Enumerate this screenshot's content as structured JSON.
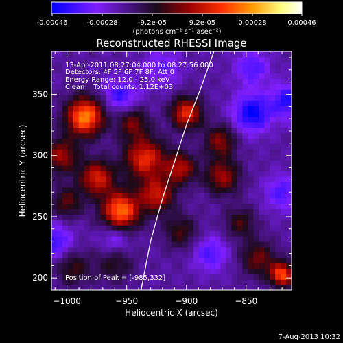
{
  "colorbar": {
    "ticks": [
      "-0.00046",
      "-0.00028",
      "-9.2e-05",
      "9.2e-05",
      "0.00028",
      "0.00046"
    ],
    "units": "(photons cm⁻² s⁻¹ asec⁻²)"
  },
  "chart_data": {
    "type": "heatmap",
    "title": "Reconstructed RHESSI Image",
    "xlabel": "Heliocentric X (arcsec)",
    "ylabel": "Heliocentric Y (arcsec)",
    "xlim": [
      -1013,
      -812
    ],
    "ylim": [
      190,
      385
    ],
    "xticks": [
      -1000,
      -950,
      -900,
      -850
    ],
    "yticks": [
      200,
      250,
      300,
      350
    ],
    "xtick_labels": [
      "−1000",
      "−950",
      "−900",
      "−850"
    ],
    "ytick_labels": [
      "200",
      "250",
      "300",
      "350"
    ],
    "colorbar_range": [
      -0.00046,
      0.00046
    ],
    "colormap": [
      "#0000ff",
      "#7f1fff",
      "#1a0a1a",
      "#9a0000",
      "#ff3000",
      "#ff9a00",
      "#ffff80",
      "#ffffff"
    ],
    "grid": false,
    "annotations": {
      "time_range": "13-Apr-2011 08:27:04.000 to 08:27:56.000",
      "detectors": "Detectors: 4F 5F 6F 7F 8F, Att 0",
      "energy": "Energy Range: 12.0 - 25.0 keV",
      "clean": "Clean    Total counts: 1.12E+03",
      "peak": "Position of Peak = [-985,332]"
    },
    "peak_position": [
      -985,
      332
    ],
    "limb": [
      [
        -938,
        190
      ],
      [
        -930,
        230
      ],
      [
        -920,
        265
      ],
      [
        -910,
        295
      ],
      [
        -900,
        325
      ],
      [
        -888,
        355
      ],
      [
        -877,
        385
      ]
    ],
    "sources": [
      {
        "x": -985,
        "y": 332,
        "amp": 1.0,
        "s": 11
      },
      {
        "x": -900,
        "y": 335,
        "amp": 0.75,
        "s": 9
      },
      {
        "x": -955,
        "y": 255,
        "amp": 0.95,
        "s": 11
      },
      {
        "x": -975,
        "y": 282,
        "amp": 0.7,
        "s": 10
      },
      {
        "x": -935,
        "y": 298,
        "amp": 0.75,
        "s": 12
      },
      {
        "x": -925,
        "y": 268,
        "amp": 0.65,
        "s": 10
      },
      {
        "x": -905,
        "y": 290,
        "amp": 0.6,
        "s": 9
      },
      {
        "x": -870,
        "y": 283,
        "amp": 0.55,
        "s": 10
      },
      {
        "x": -872,
        "y": 312,
        "amp": 0.5,
        "s": 9
      },
      {
        "x": -945,
        "y": 327,
        "amp": 0.45,
        "s": 9
      },
      {
        "x": -1005,
        "y": 300,
        "amp": 0.55,
        "s": 10
      },
      {
        "x": -1000,
        "y": 262,
        "amp": 0.4,
        "s": 9
      },
      {
        "x": -855,
        "y": 245,
        "amp": 0.35,
        "s": 9
      },
      {
        "x": -840,
        "y": 216,
        "amp": 0.45,
        "s": 10
      },
      {
        "x": -820,
        "y": 203,
        "amp": 0.85,
        "s": 7
      },
      {
        "x": -995,
        "y": 208,
        "amp": 0.35,
        "s": 10
      },
      {
        "x": -960,
        "y": 212,
        "amp": 0.3,
        "s": 11
      },
      {
        "x": -905,
        "y": 238,
        "amp": 0.35,
        "s": 10
      },
      {
        "x": -845,
        "y": 335,
        "amp": -0.55,
        "s": 11
      },
      {
        "x": -815,
        "y": 345,
        "amp": -0.45,
        "s": 10
      },
      {
        "x": -955,
        "y": 350,
        "amp": -0.4,
        "s": 10
      },
      {
        "x": -1010,
        "y": 230,
        "amp": -0.4,
        "s": 10
      },
      {
        "x": -880,
        "y": 220,
        "amp": -0.35,
        "s": 10
      },
      {
        "x": -960,
        "y": 232,
        "amp": -0.3,
        "s": 9
      },
      {
        "x": -920,
        "y": 372,
        "amp": -0.3,
        "s": 10
      },
      {
        "x": -820,
        "y": 270,
        "amp": -0.35,
        "s": 10
      },
      {
        "x": -845,
        "y": 372,
        "amp": -0.35,
        "s": 10
      }
    ]
  },
  "footer": {
    "date": "7-Aug-2013 10:32"
  }
}
